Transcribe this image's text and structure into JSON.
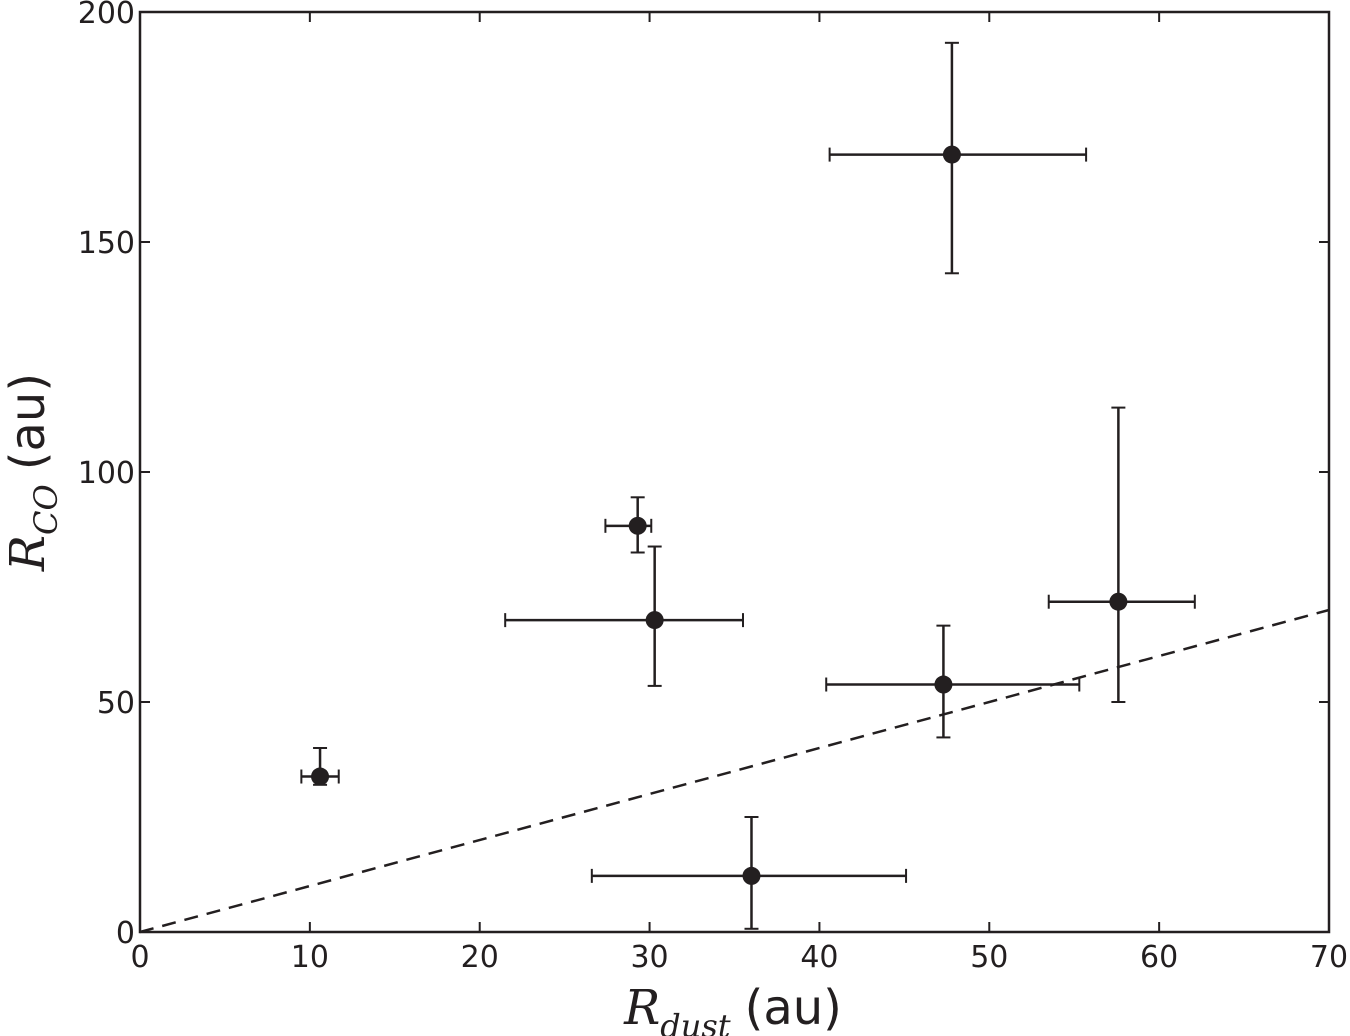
{
  "chart_data": {
    "type": "scatter",
    "title": "",
    "xlabel": {
      "symbol": "R",
      "subscript": "dust",
      "unit": "(au)"
    },
    "ylabel": {
      "symbol": "R",
      "subscript": "CO",
      "unit": "(au)"
    },
    "xlim": [
      0,
      70
    ],
    "ylim": [
      0,
      200
    ],
    "xticks": [
      0,
      10,
      20,
      30,
      40,
      50,
      60,
      70
    ],
    "yticks": [
      0,
      50,
      100,
      150,
      200
    ],
    "grid": false,
    "legend": "none",
    "colors": {
      "marker": "#231f20",
      "axis": "#231f20",
      "reference_line": "#231f20"
    },
    "series": [
      {
        "points": [
          {
            "x": 10.6,
            "y": 33.8,
            "xerr": [
              1.1,
              1.1
            ],
            "yerr": [
              1.8,
              6.2
            ]
          },
          {
            "x": 29.3,
            "y": 88.3,
            "xerr": [
              1.9,
              0.8
            ],
            "yerr": [
              5.8,
              6.2
            ]
          },
          {
            "x": 30.3,
            "y": 67.8,
            "xerr": [
              8.8,
              5.2
            ],
            "yerr": [
              14.3,
              16.0
            ]
          },
          {
            "x": 36.0,
            "y": 12.2,
            "xerr": [
              9.4,
              9.1
            ],
            "yerr": [
              11.5,
              12.8
            ]
          },
          {
            "x": 47.8,
            "y": 169.0,
            "xerr": [
              7.2,
              7.9
            ],
            "yerr": [
              25.8,
              24.3
            ]
          },
          {
            "x": 47.3,
            "y": 53.8,
            "xerr": [
              6.9,
              8.0
            ],
            "yerr": [
              11.5,
              12.8
            ]
          },
          {
            "x": 57.6,
            "y": 71.8,
            "xerr": [
              4.1,
              4.5
            ],
            "yerr": [
              21.8,
              42.2
            ]
          }
        ]
      }
    ],
    "reference_line": {
      "style": "dashed",
      "points": [
        [
          0,
          0
        ],
        [
          70,
          70
        ]
      ]
    }
  }
}
